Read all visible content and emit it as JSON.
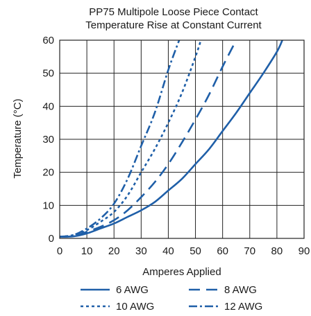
{
  "chart_data": {
    "type": "line",
    "title": [
      "PP75 Multipole Loose Piece Contact",
      "Temperature Rise at Constant Current"
    ],
    "xlabel": "Amperes Applied",
    "ylabel": "Temperature (°C)",
    "xlim": [
      0,
      90
    ],
    "ylim": [
      0,
      60
    ],
    "xticks": [
      0,
      10,
      20,
      30,
      40,
      50,
      60,
      70,
      80,
      90
    ],
    "yticks": [
      0,
      10,
      20,
      30,
      40,
      50,
      60
    ],
    "grid": true,
    "legend_position": "bottom",
    "line_color": "#1f5fa8",
    "series": [
      {
        "name": "6  AWG",
        "dash": "solid",
        "x": [
          0,
          5,
          10,
          15,
          20,
          25,
          30,
          35,
          40,
          45,
          50,
          55,
          60,
          65,
          70,
          75,
          80,
          82
        ],
        "y": [
          0.5,
          0.6,
          1.5,
          3,
          4.5,
          6.5,
          8.5,
          11,
          14.5,
          18,
          22.5,
          27,
          32.5,
          38,
          44,
          50,
          56.5,
          60
        ]
      },
      {
        "name": "8 AWG",
        "dash": "longdash",
        "x": [
          0,
          5,
          10,
          15,
          20,
          25,
          30,
          35,
          40,
          45,
          50,
          55,
          60,
          65
        ],
        "y": [
          0.5,
          0.7,
          2,
          3.5,
          5.5,
          8.5,
          12.5,
          17,
          22.5,
          29,
          36,
          43.5,
          52,
          60
        ]
      },
      {
        "name": "10 AWG",
        "dash": "dotted",
        "x": [
          0,
          5,
          10,
          15,
          20,
          25,
          30,
          35,
          40,
          45,
          50,
          52
        ],
        "y": [
          0.5,
          1,
          2.5,
          5,
          8,
          13,
          20,
          27,
          35,
          44,
          55,
          60
        ]
      },
      {
        "name": "12 AWG",
        "dash": "dashdot",
        "x": [
          0,
          5,
          10,
          15,
          20,
          25,
          30,
          35,
          40,
          44
        ],
        "y": [
          0.5,
          1,
          3,
          6,
          10.5,
          18,
          28,
          38,
          51,
          60
        ]
      }
    ]
  }
}
